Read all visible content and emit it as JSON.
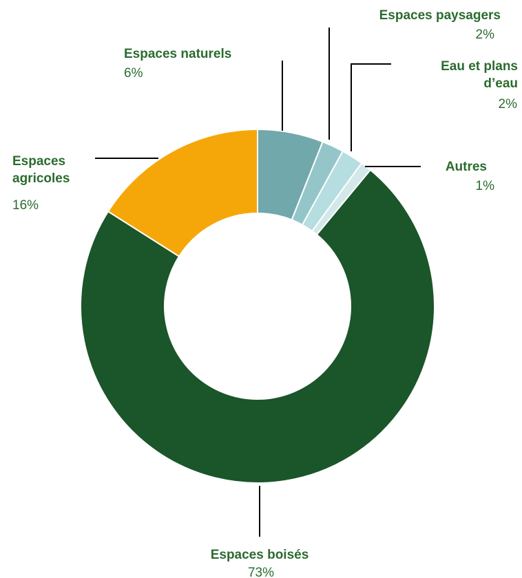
{
  "chart_data": {
    "type": "pie",
    "title": "",
    "donut": true,
    "labels_style": "callout lines",
    "slices": [
      {
        "name": "Espaces naturels",
        "lines": [
          "Espaces naturels"
        ],
        "value": 6,
        "label": "6%",
        "color": "#71a8ab"
      },
      {
        "name": "Espaces paysagers",
        "lines": [
          "Espaces paysagers"
        ],
        "value": 2,
        "label": "2%",
        "color": "#94c6c9"
      },
      {
        "name": "Eau et plans d’eau",
        "lines": [
          "Eau et plans",
          "d’eau"
        ],
        "value": 2,
        "label": "2%",
        "color": "#b6dde0"
      },
      {
        "name": "Autres",
        "lines": [
          "Autres"
        ],
        "value": 1,
        "label": "1%",
        "color": "#d3e8e9"
      },
      {
        "name": "Espaces boisés",
        "lines": [
          "Espaces boisés"
        ],
        "value": 73,
        "label": "73%",
        "color": "#1b552a"
      },
      {
        "name": "Espaces agricoles",
        "lines": [
          "Espaces",
          "agricoles"
        ],
        "value": 16,
        "label": "16%",
        "color": "#f5a709"
      }
    ],
    "label_color": "#2b6b2f",
    "leader_color": "#000000"
  }
}
